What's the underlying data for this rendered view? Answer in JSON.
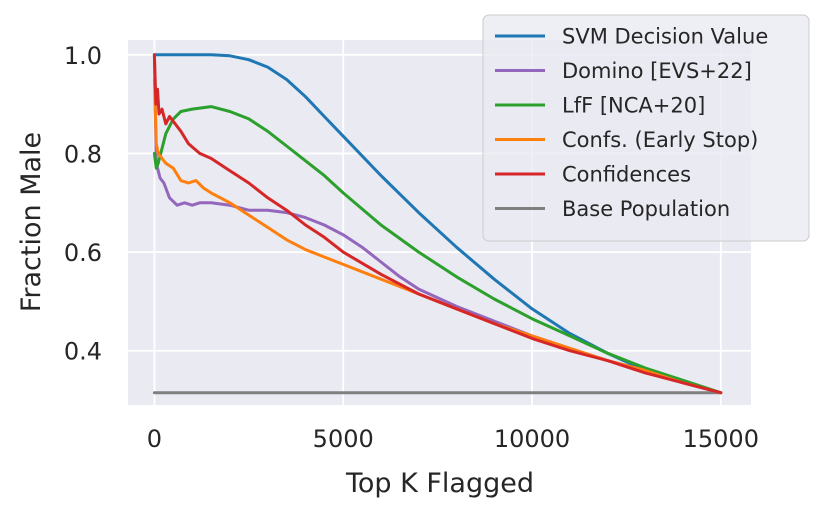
{
  "chart_data": {
    "type": "line",
    "title": "",
    "xlabel": "Top K Flagged",
    "ylabel": "Fraction Male",
    "xlim": [
      -700,
      15800
    ],
    "ylim": [
      0.29,
      1.03
    ],
    "xticks": [
      0,
      5000,
      10000,
      15000
    ],
    "xtick_labels": [
      "0",
      "5000",
      "10000",
      "15000"
    ],
    "yticks": [
      0.4,
      0.6,
      0.8,
      1.0
    ],
    "ytick_labels": [
      "0.4",
      "0.6",
      "0.8",
      "1.0"
    ],
    "grid": true,
    "legend_position": "top-right",
    "colors": {
      "background": "#eaeaf2",
      "grid": "#ffffff"
    },
    "series": [
      {
        "name": "SVM Decision Value",
        "color": "#1f77b4",
        "x": [
          0,
          500,
          1000,
          1500,
          2000,
          2500,
          3000,
          3500,
          4000,
          4500,
          5000,
          6000,
          7000,
          8000,
          9000,
          10000,
          11000,
          12000,
          13000,
          14000,
          15000
        ],
        "y": [
          1.0,
          1.0,
          1.0,
          1.0,
          0.998,
          0.99,
          0.975,
          0.95,
          0.915,
          0.875,
          0.835,
          0.755,
          0.68,
          0.61,
          0.545,
          0.485,
          0.435,
          0.395,
          0.36,
          0.335,
          0.315
        ]
      },
      {
        "name": "Domino [EVS+22]",
        "color": "#9467bd",
        "x": [
          0,
          50,
          150,
          250,
          400,
          600,
          800,
          1000,
          1200,
          1500,
          2000,
          2500,
          3000,
          3500,
          4000,
          4500,
          5000,
          5500,
          6000,
          6500,
          7000,
          8000,
          9000,
          10000,
          11000,
          12000,
          13000,
          14000,
          15000
        ],
        "y": [
          1.0,
          0.78,
          0.75,
          0.74,
          0.71,
          0.695,
          0.7,
          0.695,
          0.7,
          0.7,
          0.695,
          0.685,
          0.685,
          0.68,
          0.67,
          0.655,
          0.635,
          0.61,
          0.58,
          0.55,
          0.525,
          0.49,
          0.46,
          0.43,
          0.405,
          0.38,
          0.36,
          0.335,
          0.315
        ]
      },
      {
        "name": "LfF [NCA+20]",
        "color": "#2ca02c",
        "x": [
          0,
          50,
          100,
          200,
          300,
          500,
          700,
          1000,
          1500,
          2000,
          2500,
          3000,
          3500,
          4000,
          4500,
          5000,
          6000,
          7000,
          8000,
          9000,
          10000,
          11000,
          12000,
          13000,
          14000,
          15000
        ],
        "y": [
          0.8,
          0.77,
          0.78,
          0.81,
          0.84,
          0.87,
          0.885,
          0.89,
          0.895,
          0.885,
          0.87,
          0.845,
          0.815,
          0.785,
          0.755,
          0.72,
          0.655,
          0.6,
          0.55,
          0.505,
          0.465,
          0.43,
          0.395,
          0.365,
          0.34,
          0.315
        ]
      },
      {
        "name": "Confs. (Early Stop)",
        "color": "#ff7f0e",
        "x": [
          0,
          50,
          100,
          200,
          300,
          500,
          700,
          900,
          1100,
          1300,
          1500,
          2000,
          2500,
          3000,
          3500,
          4000,
          4500,
          5000,
          6000,
          7000,
          8000,
          9000,
          10000,
          11000,
          12000,
          13000,
          14000,
          15000
        ],
        "y": [
          0.95,
          0.82,
          0.8,
          0.79,
          0.78,
          0.77,
          0.745,
          0.74,
          0.745,
          0.73,
          0.72,
          0.7,
          0.675,
          0.65,
          0.625,
          0.605,
          0.59,
          0.575,
          0.545,
          0.515,
          0.485,
          0.455,
          0.43,
          0.405,
          0.38,
          0.36,
          0.335,
          0.315
        ]
      },
      {
        "name": "Confidences",
        "color": "#d62728",
        "x": [
          0,
          40,
          80,
          120,
          200,
          300,
          400,
          500,
          700,
          900,
          1200,
          1500,
          2000,
          2500,
          3000,
          3500,
          4000,
          4500,
          5000,
          6000,
          7000,
          8000,
          9000,
          10000,
          11000,
          12000,
          13000,
          14000,
          15000
        ],
        "y": [
          1.0,
          0.9,
          0.93,
          0.88,
          0.89,
          0.86,
          0.875,
          0.865,
          0.845,
          0.82,
          0.8,
          0.79,
          0.765,
          0.74,
          0.71,
          0.685,
          0.655,
          0.63,
          0.6,
          0.555,
          0.515,
          0.485,
          0.455,
          0.425,
          0.4,
          0.38,
          0.355,
          0.335,
          0.315
        ]
      },
      {
        "name": "Base Population",
        "color": "#7f7f7f",
        "x": [
          0,
          15000
        ],
        "y": [
          0.315,
          0.315
        ]
      }
    ]
  }
}
